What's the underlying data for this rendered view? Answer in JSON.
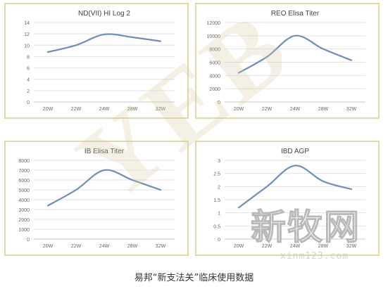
{
  "chart_data": [
    {
      "type": "line",
      "title": "ND(VII) HI Log 2",
      "categories": [
        "20W",
        "22W",
        "24W",
        "28W",
        "32W"
      ],
      "values": [
        8.8,
        10.0,
        11.9,
        11.4,
        10.7
      ],
      "ylim": [
        0,
        14
      ],
      "yticks": [
        "0",
        "2",
        "4",
        "6",
        "8",
        "10",
        "12",
        "14"
      ],
      "grid": true,
      "line_color": "#6b8fb8"
    },
    {
      "type": "line",
      "title": "REO Elisa Titer",
      "categories": [
        "20W",
        "22W",
        "24W",
        "28W",
        "32W"
      ],
      "values": [
        4400,
        6800,
        10000,
        8000,
        6300
      ],
      "ylim": [
        0,
        12000
      ],
      "yticks": [
        "0",
        "2000",
        "4000",
        "6000",
        "8000",
        "10000",
        "12000"
      ],
      "grid": true,
      "line_color": "#6b8fb8"
    },
    {
      "type": "line",
      "title": "IB Elisa Titer",
      "categories": [
        "20W",
        "22W",
        "24W",
        "28W",
        "32W"
      ],
      "values": [
        3400,
        5000,
        7000,
        6000,
        5000
      ],
      "ylim": [
        0,
        8000
      ],
      "yticks": [
        "0",
        "1000",
        "2000",
        "3000",
        "4000",
        "5000",
        "6000",
        "7000",
        "8000"
      ],
      "grid": true,
      "line_color": "#6b8fb8"
    },
    {
      "type": "line",
      "title": "IBD AGP",
      "categories": [
        "20W",
        "22W",
        "24W",
        "28W",
        "32W"
      ],
      "values": [
        1.2,
        2.0,
        2.8,
        2.2,
        1.9
      ],
      "ylim": [
        0,
        3
      ],
      "yticks": [
        "0",
        "0.5",
        "1",
        "1.5",
        "2",
        "2.5",
        "3"
      ],
      "grid": true,
      "line_color": "#6b8fb8"
    }
  ],
  "caption": "易邦“新支法关”临床使用数据",
  "watermark": {
    "letters": "YEB",
    "logo_text": "新牧网",
    "site": "xinm123.com"
  }
}
